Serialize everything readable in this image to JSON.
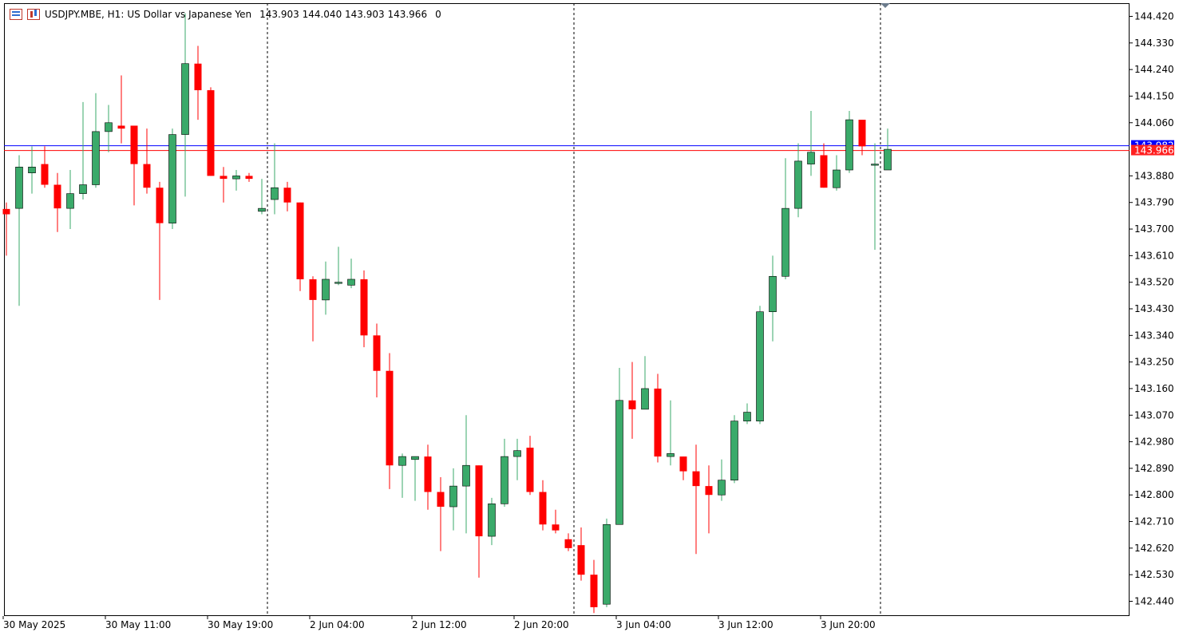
{
  "header": {
    "symbol": "USDJPY.MBE, H1:",
    "description": "US Dollar vs Japanese Yen",
    "ohlc": "143.903 144.040 143.903 143.966",
    "volume": "0"
  },
  "colors": {
    "bull": "#3aaa6a",
    "bear": "#ff0000",
    "bid_line": "#0000ff",
    "ask_line": "#ff0000",
    "ask_label_bg": "#ff2020",
    "bid_label_bg": "#0000ff",
    "axis": "#000000"
  },
  "chart_data": {
    "type": "candlestick",
    "symbol": "USDJPY.MBE",
    "timeframe": "H1",
    "ylim": [
      142.38,
      144.46
    ],
    "y_ticks": [
      "144.420",
      "144.330",
      "144.240",
      "144.150",
      "144.060",
      "143.880",
      "143.790",
      "143.700",
      "143.610",
      "143.520",
      "143.430",
      "143.340",
      "143.250",
      "143.160",
      "143.070",
      "142.980",
      "142.890",
      "142.800",
      "142.710",
      "142.620",
      "142.530",
      "142.440"
    ],
    "x_ticks": [
      {
        "label": "30 May 2025",
        "bar": 0
      },
      {
        "label": "30 May 11:00",
        "bar": 8
      },
      {
        "label": "30 May 19:00",
        "bar": 16
      },
      {
        "label": "2 Jun 04:00",
        "bar": 24
      },
      {
        "label": "2 Jun 12:00",
        "bar": 32
      },
      {
        "label": "2 Jun 20:00",
        "bar": 40
      },
      {
        "label": "3 Jun 04:00",
        "bar": 48
      },
      {
        "label": "3 Jun 12:00",
        "bar": 56
      },
      {
        "label": "3 Jun 20:00",
        "bar": 64
      }
    ],
    "day_separators_after_bar": [
      20,
      44,
      68
    ],
    "bid_price": 143.982,
    "bid_label": "143.982",
    "ask_price": 143.966,
    "ask_label": "143.966",
    "candles": [
      [
        143.768,
        143.79,
        143.61,
        143.75
      ],
      [
        143.77,
        143.95,
        143.44,
        143.91
      ],
      [
        143.89,
        143.98,
        143.82,
        143.91
      ],
      [
        143.92,
        143.98,
        143.84,
        143.85
      ],
      [
        143.85,
        143.89,
        143.69,
        143.77
      ],
      [
        143.77,
        143.9,
        143.7,
        143.82
      ],
      [
        143.82,
        144.13,
        143.8,
        143.85
      ],
      [
        143.85,
        144.16,
        143.84,
        144.03
      ],
      [
        144.03,
        144.12,
        143.96,
        144.06
      ],
      [
        144.05,
        144.22,
        143.99,
        144.04
      ],
      [
        144.05,
        144.05,
        143.78,
        143.92
      ],
      [
        143.92,
        144.04,
        143.82,
        143.84
      ],
      [
        143.84,
        143.86,
        143.46,
        143.72
      ],
      [
        143.72,
        144.04,
        143.7,
        144.02
      ],
      [
        144.02,
        144.43,
        143.81,
        144.26
      ],
      [
        144.26,
        144.32,
        144.07,
        144.17
      ],
      [
        144.17,
        144.18,
        143.88,
        143.88
      ],
      [
        143.88,
        143.91,
        143.79,
        143.87
      ],
      [
        143.87,
        143.9,
        143.83,
        143.88
      ],
      [
        143.88,
        143.89,
        143.86,
        143.87
      ],
      [
        143.76,
        143.87,
        143.75,
        143.77
      ],
      [
        143.8,
        143.99,
        143.75,
        143.84
      ],
      [
        143.84,
        143.86,
        143.76,
        143.79
      ],
      [
        143.79,
        143.79,
        143.49,
        143.53
      ],
      [
        143.53,
        143.54,
        143.32,
        143.46
      ],
      [
        143.46,
        143.59,
        143.41,
        143.53
      ],
      [
        143.52,
        143.64,
        143.51,
        143.52
      ],
      [
        143.51,
        143.6,
        143.5,
        143.53
      ],
      [
        143.53,
        143.56,
        143.3,
        143.34
      ],
      [
        143.34,
        143.38,
        143.13,
        143.22
      ],
      [
        143.22,
        143.28,
        142.82,
        142.9
      ],
      [
        142.9,
        142.94,
        142.79,
        142.93
      ],
      [
        142.92,
        142.93,
        142.78,
        142.93
      ],
      [
        142.93,
        142.97,
        142.75,
        142.81
      ],
      [
        142.81,
        142.86,
        142.61,
        142.76
      ],
      [
        142.76,
        142.89,
        142.68,
        142.83
      ],
      [
        142.83,
        143.07,
        142.67,
        142.9
      ],
      [
        142.9,
        142.9,
        142.52,
        142.66
      ],
      [
        142.66,
        142.79,
        142.63,
        142.77
      ],
      [
        142.77,
        142.99,
        142.76,
        142.93
      ],
      [
        142.93,
        142.99,
        142.85,
        142.95
      ],
      [
        142.96,
        143.0,
        142.8,
        142.81
      ],
      [
        142.81,
        142.85,
        142.68,
        142.7
      ],
      [
        142.7,
        142.75,
        142.67,
        142.68
      ],
      [
        142.65,
        142.67,
        142.61,
        142.62
      ],
      [
        142.63,
        142.69,
        142.51,
        142.53
      ],
      [
        142.53,
        142.58,
        142.4,
        142.42
      ],
      [
        142.43,
        142.72,
        142.42,
        142.7
      ],
      [
        142.7,
        143.23,
        142.7,
        143.12
      ],
      [
        143.12,
        143.25,
        142.99,
        143.09
      ],
      [
        143.09,
        143.27,
        143.09,
        143.16
      ],
      [
        143.16,
        143.21,
        142.91,
        142.93
      ],
      [
        142.93,
        143.12,
        142.9,
        142.94
      ],
      [
        142.93,
        142.93,
        142.85,
        142.88
      ],
      [
        142.88,
        142.97,
        142.6,
        142.83
      ],
      [
        142.83,
        142.9,
        142.67,
        142.8
      ],
      [
        142.8,
        142.92,
        142.78,
        142.85
      ],
      [
        142.85,
        143.07,
        142.84,
        143.05
      ],
      [
        143.05,
        143.11,
        143.04,
        143.08
      ],
      [
        143.05,
        143.44,
        143.04,
        143.42
      ],
      [
        143.42,
        143.61,
        143.32,
        143.54
      ],
      [
        143.54,
        143.94,
        143.53,
        143.77
      ],
      [
        143.77,
        143.99,
        143.74,
        143.93
      ],
      [
        143.92,
        144.1,
        143.88,
        143.96
      ],
      [
        143.95,
        143.99,
        143.84,
        143.84
      ],
      [
        143.84,
        143.95,
        143.83,
        143.9
      ],
      [
        143.9,
        144.1,
        143.89,
        144.07
      ],
      [
        144.07,
        144.07,
        143.95,
        143.98
      ],
      [
        143.92,
        143.99,
        143.63,
        143.92
      ],
      [
        143.9,
        144.04,
        143.9,
        143.97
      ]
    ]
  }
}
